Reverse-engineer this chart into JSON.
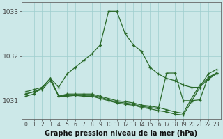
{
  "xlabel": "Graphe pression niveau de la mer (hPa)",
  "hours": [
    0,
    1,
    2,
    3,
    4,
    5,
    6,
    7,
    8,
    9,
    10,
    11,
    12,
    13,
    14,
    15,
    16,
    17,
    18,
    19,
    20,
    21,
    22,
    23
  ],
  "series_main": [
    1031.1,
    1031.15,
    1031.3,
    1031.5,
    1031.3,
    1031.6,
    1031.75,
    1031.9,
    1032.05,
    1032.25,
    1033.0,
    1033.0,
    1032.5,
    1032.25,
    1032.1,
    1031.75,
    1031.6,
    1031.5,
    1031.45,
    1031.35,
    1031.3,
    1031.3,
    1031.6,
    1031.7
  ],
  "series_line2": [
    1031.15,
    1031.2,
    1031.25,
    1031.45,
    1031.1,
    1031.15,
    1031.15,
    1031.15,
    1031.15,
    1031.1,
    1031.05,
    1031.0,
    1030.98,
    1030.95,
    1030.9,
    1030.88,
    1030.85,
    1030.8,
    1030.75,
    1030.72,
    1031.05,
    1031.35,
    1031.5,
    1031.62
  ],
  "series_line3": [
    1031.2,
    1031.25,
    1031.3,
    1031.5,
    1031.1,
    1031.1,
    1031.12,
    1031.1,
    1031.1,
    1031.05,
    1031.0,
    1030.95,
    1030.92,
    1030.9,
    1030.85,
    1030.82,
    1030.78,
    1030.75,
    1030.7,
    1030.68,
    1030.98,
    1031.3,
    1031.48,
    1031.6
  ],
  "series_line4": [
    1031.15,
    1031.2,
    1031.28,
    1031.5,
    1031.1,
    1031.12,
    1031.12,
    1031.12,
    1031.12,
    1031.08,
    1031.02,
    1030.97,
    1030.95,
    1030.92,
    1030.87,
    1030.85,
    1030.82,
    1031.62,
    1031.62,
    1031.0,
    1031.0,
    1031.02,
    1031.52,
    1031.62
  ],
  "bg_color": "#cce8e8",
  "grid_color": "#9ecece",
  "line_color": "#2a6a2a",
  "ymin": 1030.6,
  "ymax": 1033.2,
  "yticks": [
    1031,
    1032,
    1033
  ],
  "figwidth": 3.2,
  "figheight": 2.0,
  "tick_fontsize": 5.5,
  "ytick_fontsize": 6.5,
  "xlabel_fontsize": 7.0
}
